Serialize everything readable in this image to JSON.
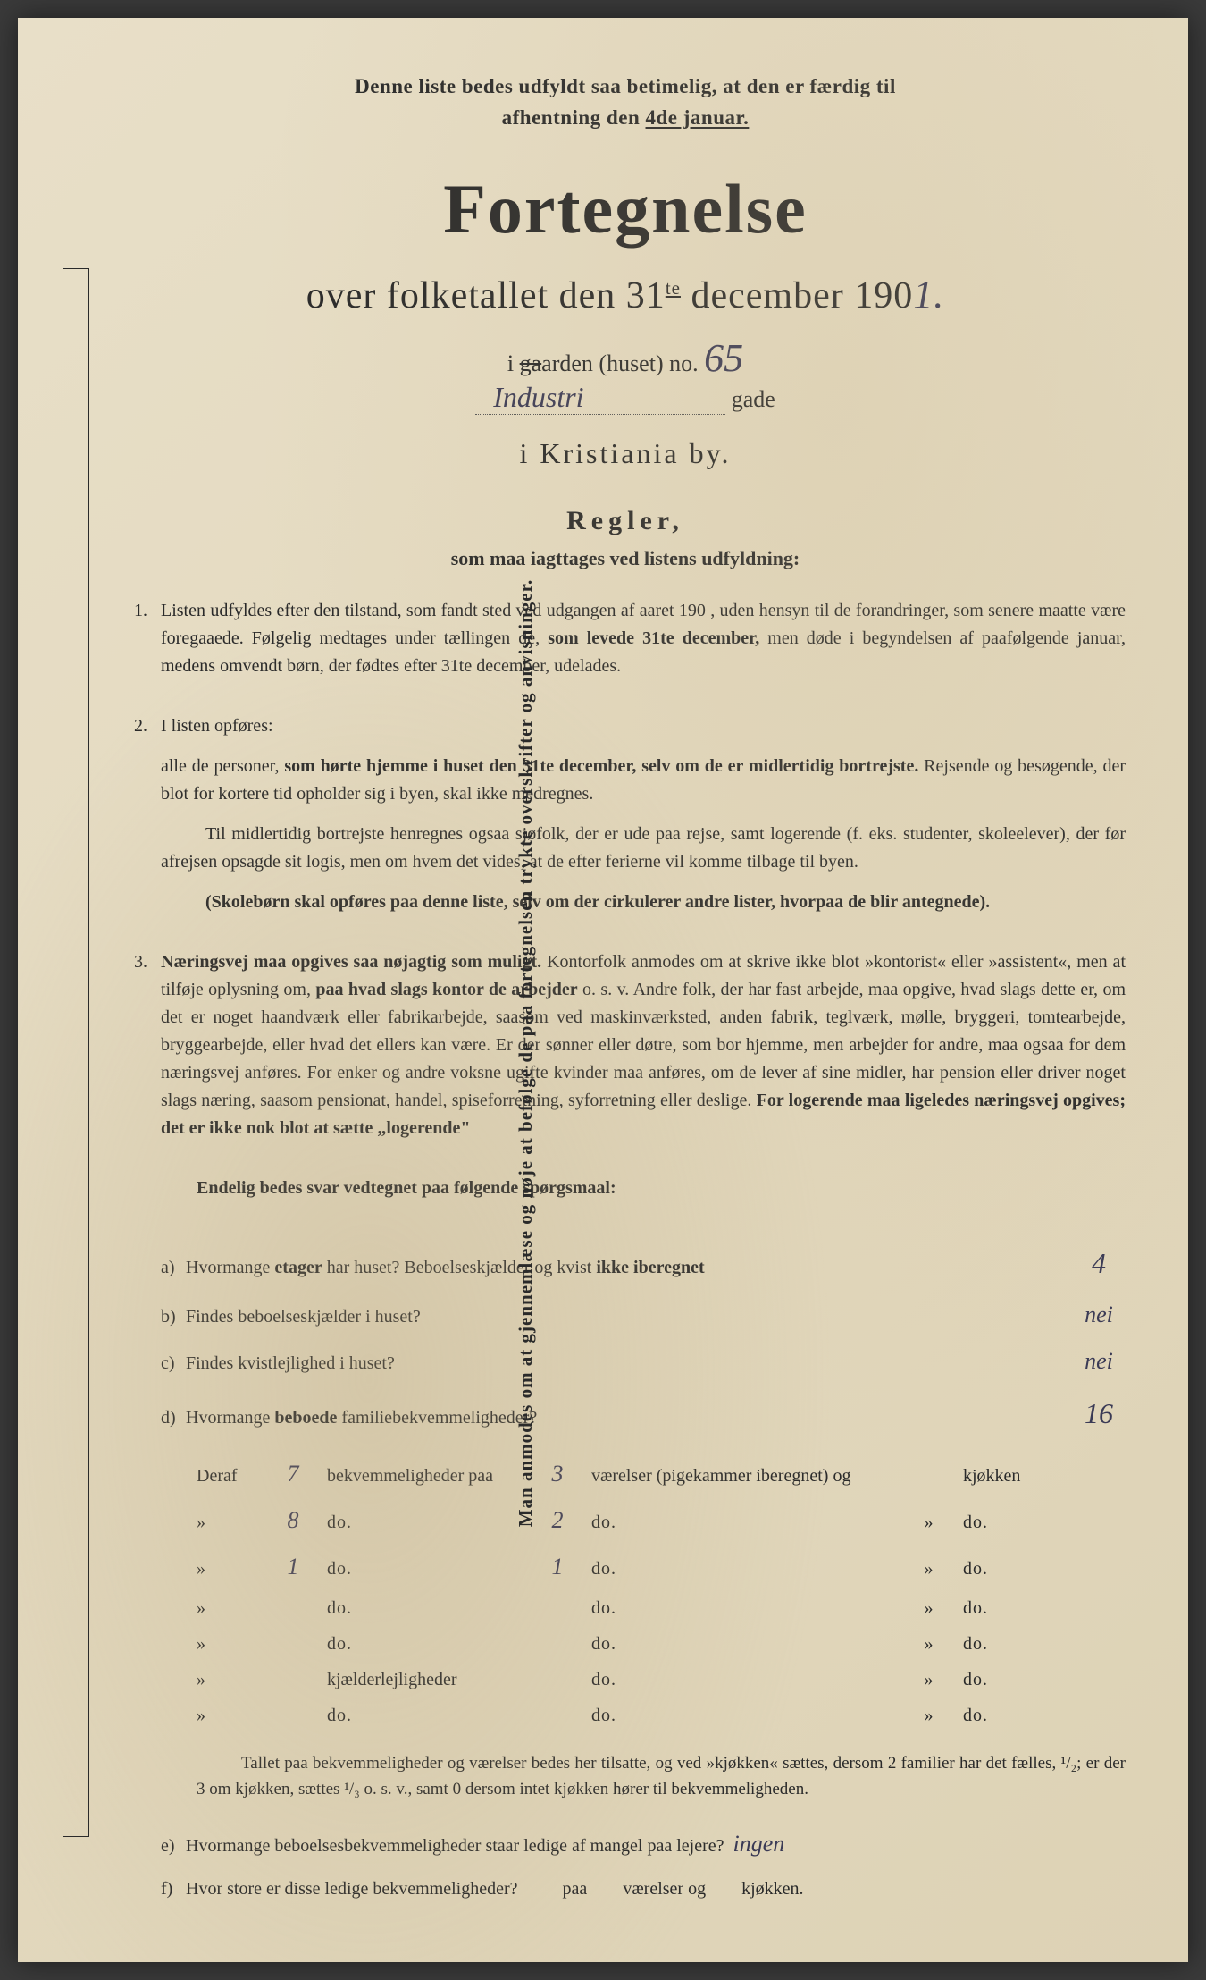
{
  "vertical_note": "Man anmodes om at gjennemlæse og nøje at befølge de paa fortegnelsen trykte overskrifter og anvisninger.",
  "top_notice_1": "Denne liste bedes udfyldt saa betimelig, at den er færdig til",
  "top_notice_2a": "afhentning den ",
  "top_notice_2b": "4de januar.",
  "title": "Fortegnelse",
  "subtitle_a": "over folketallet den 31",
  "subtitle_sup": "te",
  "subtitle_b": " december 190",
  "hw_year": "1.",
  "addr": {
    "line1_a": "i ",
    "line1_strike": "ga",
    "line1_b": "arden (huset) no. ",
    "house_no": "65",
    "street": "Industri",
    "gade": "gade"
  },
  "city": "i Kristiania by.",
  "regler": "Regler,",
  "regler_sub": "som maa iagttages ved listens udfyldning:",
  "rules": [
    {
      "num": "1.",
      "paras": [
        "Listen udfyldes efter den tilstand, som fandt sted ved udgangen af aaret 190   , uden hensyn til de forandringer, som senere maatte være foregaaede.  Følgelig medtages under tællingen de, <b>som levede 31te december,</b> men døde i begyndelsen af paafølgende januar, medens omvendt børn, der fødtes efter 31te december, udelades."
      ]
    },
    {
      "num": "2.",
      "paras": [
        "I listen opføres:",
        "alle de personer, <b>som hørte hjemme i huset den 31te december, selv om de er midlertidig bortrejste.</b>  Rejsende og besøgende, der blot for kortere tid opholder sig i byen, skal ikke medregnes.",
        "<ind>Til midlertidig bortrejste henregnes ogsaa sjøfolk, der er ude paa rejse, samt logerende (f. eks. studenter, skoleelever), der før afrejsen opsagde sit logis, men om hvem det vides, at de efter ferierne vil komme tilbage til byen.",
        "<ind><b>(Skolebørn skal opføres paa denne liste, selv om der cirkulerer andre lister, hvorpaa de blir antegnede).</b>"
      ]
    },
    {
      "num": "3.",
      "paras": [
        "<b>Næringsvej maa opgives saa nøjagtig som muligt.</b>  Kontorfolk anmodes om at skrive ikke blot »kontorist« eller »assistent«, men at tilføje oplysning om, <b>paa hvad slags kontor de arbejder</b> o. s. v.  Andre folk, der har fast arbejde, maa opgive, hvad slags dette er, om det er noget haandværk eller fabrikarbejde, saasom ved maskinværksted, anden fabrik, teglværk, mølle, bryggeri, tomtearbejde, bryggearbejde, eller hvad det ellers kan være.  Er der sønner eller døtre, som bor hjemme, men arbejder for andre, maa ogsaa for dem næringsvej anføres.  For enker og andre voksne ugifte kvinder maa anføres, om de lever af sine midler, har pension eller driver noget slags næring, saasom pensionat, handel, spiseforretning, syforretning eller deslige.  <b>For logerende maa ligeledes næringsvej opgives; det er ikke nok blot at sætte „logerende\"</b>"
      ]
    }
  ],
  "endelig": "Endelig bedes svar vedtegnet paa følgende spørgsmaal:",
  "questions": {
    "a": {
      "label": "a)",
      "text": "Hvormange <b>etager</b> har huset?  Beboelseskjælder og kvist <b>ikke iberegnet</b>",
      "ans": "4"
    },
    "b": {
      "label": "b)",
      "text": "Findes beboelseskjælder i huset?",
      "ans": "nei"
    },
    "c": {
      "label": "c)",
      "text": "Findes kvistlejlighed i huset?",
      "ans": "nei"
    },
    "d": {
      "label": "d)",
      "text": "Hvormange <b>beboede</b> familiebekvemmeligheder?",
      "ans": "16"
    }
  },
  "table": {
    "header": {
      "lead": "Deraf",
      "a": "7",
      "b": "bekvemmeligheder paa",
      "c": "3",
      "d": "værelser (pigekammer iberegnet) og",
      "e": "",
      "f": "kjøkken"
    },
    "rows": [
      {
        "lead": "»",
        "a": "8",
        "b": "do.",
        "c": "2",
        "d": "do.",
        "e": "»",
        "f": "do."
      },
      {
        "lead": "»",
        "a": "1",
        "b": "do.",
        "c": "1",
        "d": "do.",
        "e": "»",
        "f": "do."
      },
      {
        "lead": "»",
        "a": "",
        "b": "do.",
        "c": "",
        "d": "do.",
        "e": "»",
        "f": "do."
      },
      {
        "lead": "»",
        "a": "",
        "b": "do.",
        "c": "",
        "d": "do.",
        "e": "»",
        "f": "do."
      },
      {
        "lead": "»",
        "a": "",
        "b": "kjælderlejligheder",
        "c": "",
        "d": "do.",
        "e": "»",
        "f": "do."
      },
      {
        "lead": "»",
        "a": "",
        "b": "do.",
        "c": "",
        "d": "do.",
        "e": "»",
        "f": "do."
      }
    ]
  },
  "footnote": "Tallet paa bekvemmeligheder og værelser bedes her tilsatte, og ved »kjøkken« sættes, dersom 2 familier har det fælles, ¹/₂; er der 3 om kjøkken, sættes ¹/₃ o. s. v., samt 0 dersom intet kjøkken hører til bekvemmeligheden.",
  "final": {
    "e": {
      "label": "e)",
      "text": "Hvormange beboelsesbekvemmeligheder staar ledige af mangel paa lejere?",
      "ans": "ingen"
    },
    "f": {
      "label": "f)",
      "text_a": "Hvor store er disse ledige bekvemmeligheder?",
      "text_b": "paa",
      "text_c": "værelser og",
      "text_d": "kjøkken."
    }
  }
}
